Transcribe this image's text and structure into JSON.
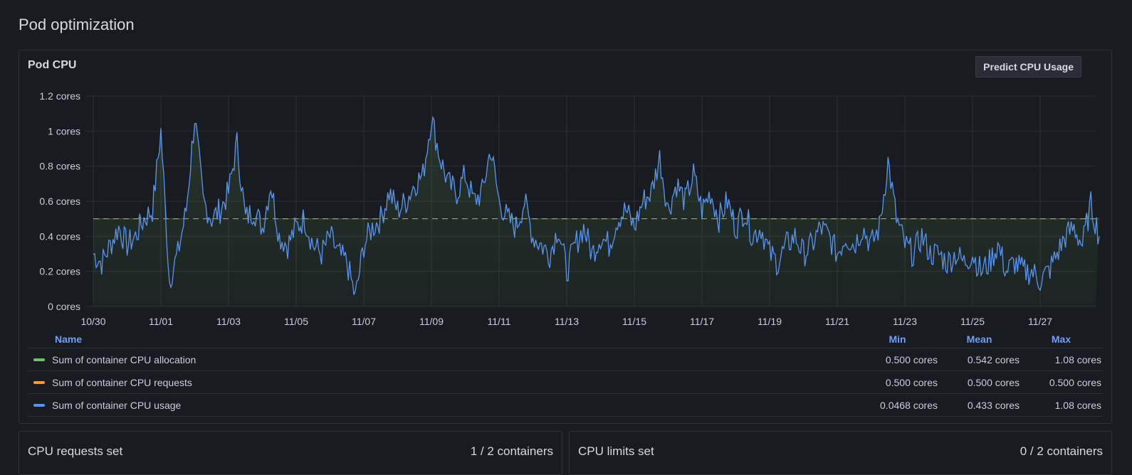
{
  "page_title": "Pod optimization",
  "panel": {
    "title": "Pod CPU",
    "predict_button": "Predict CPU Usage"
  },
  "legend": {
    "headers": {
      "name": "Name",
      "min": "Min",
      "mean": "Mean",
      "max": "Max"
    },
    "rows": [
      {
        "name": "Sum of container CPU allocation",
        "color": "#73bf69",
        "min": "0.500 cores",
        "mean": "0.542 cores",
        "max": "1.08 cores"
      },
      {
        "name": "Sum of container CPU requests",
        "color": "#ff9830",
        "min": "0.500 cores",
        "mean": "0.500 cores",
        "max": "0.500 cores"
      },
      {
        "name": "Sum of container CPU usage",
        "color": "#5794f2",
        "min": "0.0468 cores",
        "mean": "0.433 cores",
        "max": "1.08 cores"
      }
    ]
  },
  "chart_data": {
    "type": "line",
    "title": "Pod CPU",
    "ylim": [
      0,
      1.2
    ],
    "y_ticks": [
      "0 cores",
      "0.2 cores",
      "0.4 cores",
      "0.6 cores",
      "0.8 cores",
      "1 cores",
      "1.2 cores"
    ],
    "y_tick_values": [
      0,
      0.2,
      0.4,
      0.6,
      0.8,
      1.0,
      1.2
    ],
    "x_ticks": [
      "10/30",
      "11/01",
      "11/03",
      "11/05",
      "11/07",
      "11/09",
      "11/11",
      "11/13",
      "11/15",
      "11/17",
      "11/19",
      "11/21",
      "11/23",
      "11/25",
      "11/27"
    ],
    "x_range": [
      "10/30",
      "11/28 18:00"
    ],
    "sample_interval_hours": 6,
    "grid": true,
    "legend_placement": "bottom",
    "series": [
      {
        "name": "Sum of container CPU usage",
        "color": "#5794f2",
        "values": [
          0.3,
          0.25,
          0.35,
          0.45,
          0.35,
          0.4,
          0.5,
          0.55,
          1.0,
          0.15,
          0.3,
          0.55,
          1.08,
          0.6,
          0.5,
          0.55,
          0.65,
          0.93,
          0.5,
          0.55,
          0.45,
          0.7,
          0.4,
          0.35,
          0.45,
          0.5,
          0.35,
          0.3,
          0.4,
          0.3,
          0.25,
          0.05,
          0.35,
          0.45,
          0.5,
          0.65,
          0.55,
          0.6,
          0.7,
          0.75,
          1.08,
          0.85,
          0.7,
          0.65,
          0.75,
          0.6,
          0.65,
          0.9,
          0.6,
          0.5,
          0.45,
          0.6,
          0.4,
          0.35,
          0.3,
          0.45,
          0.2,
          0.35,
          0.45,
          0.3,
          0.4,
          0.35,
          0.5,
          0.55,
          0.45,
          0.6,
          0.65,
          0.85,
          0.55,
          0.7,
          0.6,
          0.75,
          0.55,
          0.65,
          0.5,
          0.6,
          0.45,
          0.55,
          0.4,
          0.45,
          0.3,
          0.25,
          0.35,
          0.4,
          0.3,
          0.35,
          0.45,
          0.4,
          0.3,
          0.4,
          0.35,
          0.45,
          0.35,
          0.45,
          0.83,
          0.5,
          0.35,
          0.3,
          0.4,
          0.3,
          0.3,
          0.25,
          0.3,
          0.25,
          0.3,
          0.2,
          0.25,
          0.35,
          0.2,
          0.25,
          0.2,
          0.2,
          0.15,
          0.2,
          0.3,
          0.4,
          0.45,
          0.35,
          0.58,
          0.4
        ]
      },
      {
        "name": "Sum of container CPU requests",
        "color": "#ff9830",
        "constant": 0.5
      },
      {
        "name": "Sum of container CPU allocation",
        "color": "#73bf69",
        "rule": "max(requests, usage)"
      }
    ]
  },
  "cards": [
    {
      "title": "CPU requests set",
      "value": "1 / 2 containers"
    },
    {
      "title": "CPU limits set",
      "value": "0 / 2 containers"
    }
  ]
}
